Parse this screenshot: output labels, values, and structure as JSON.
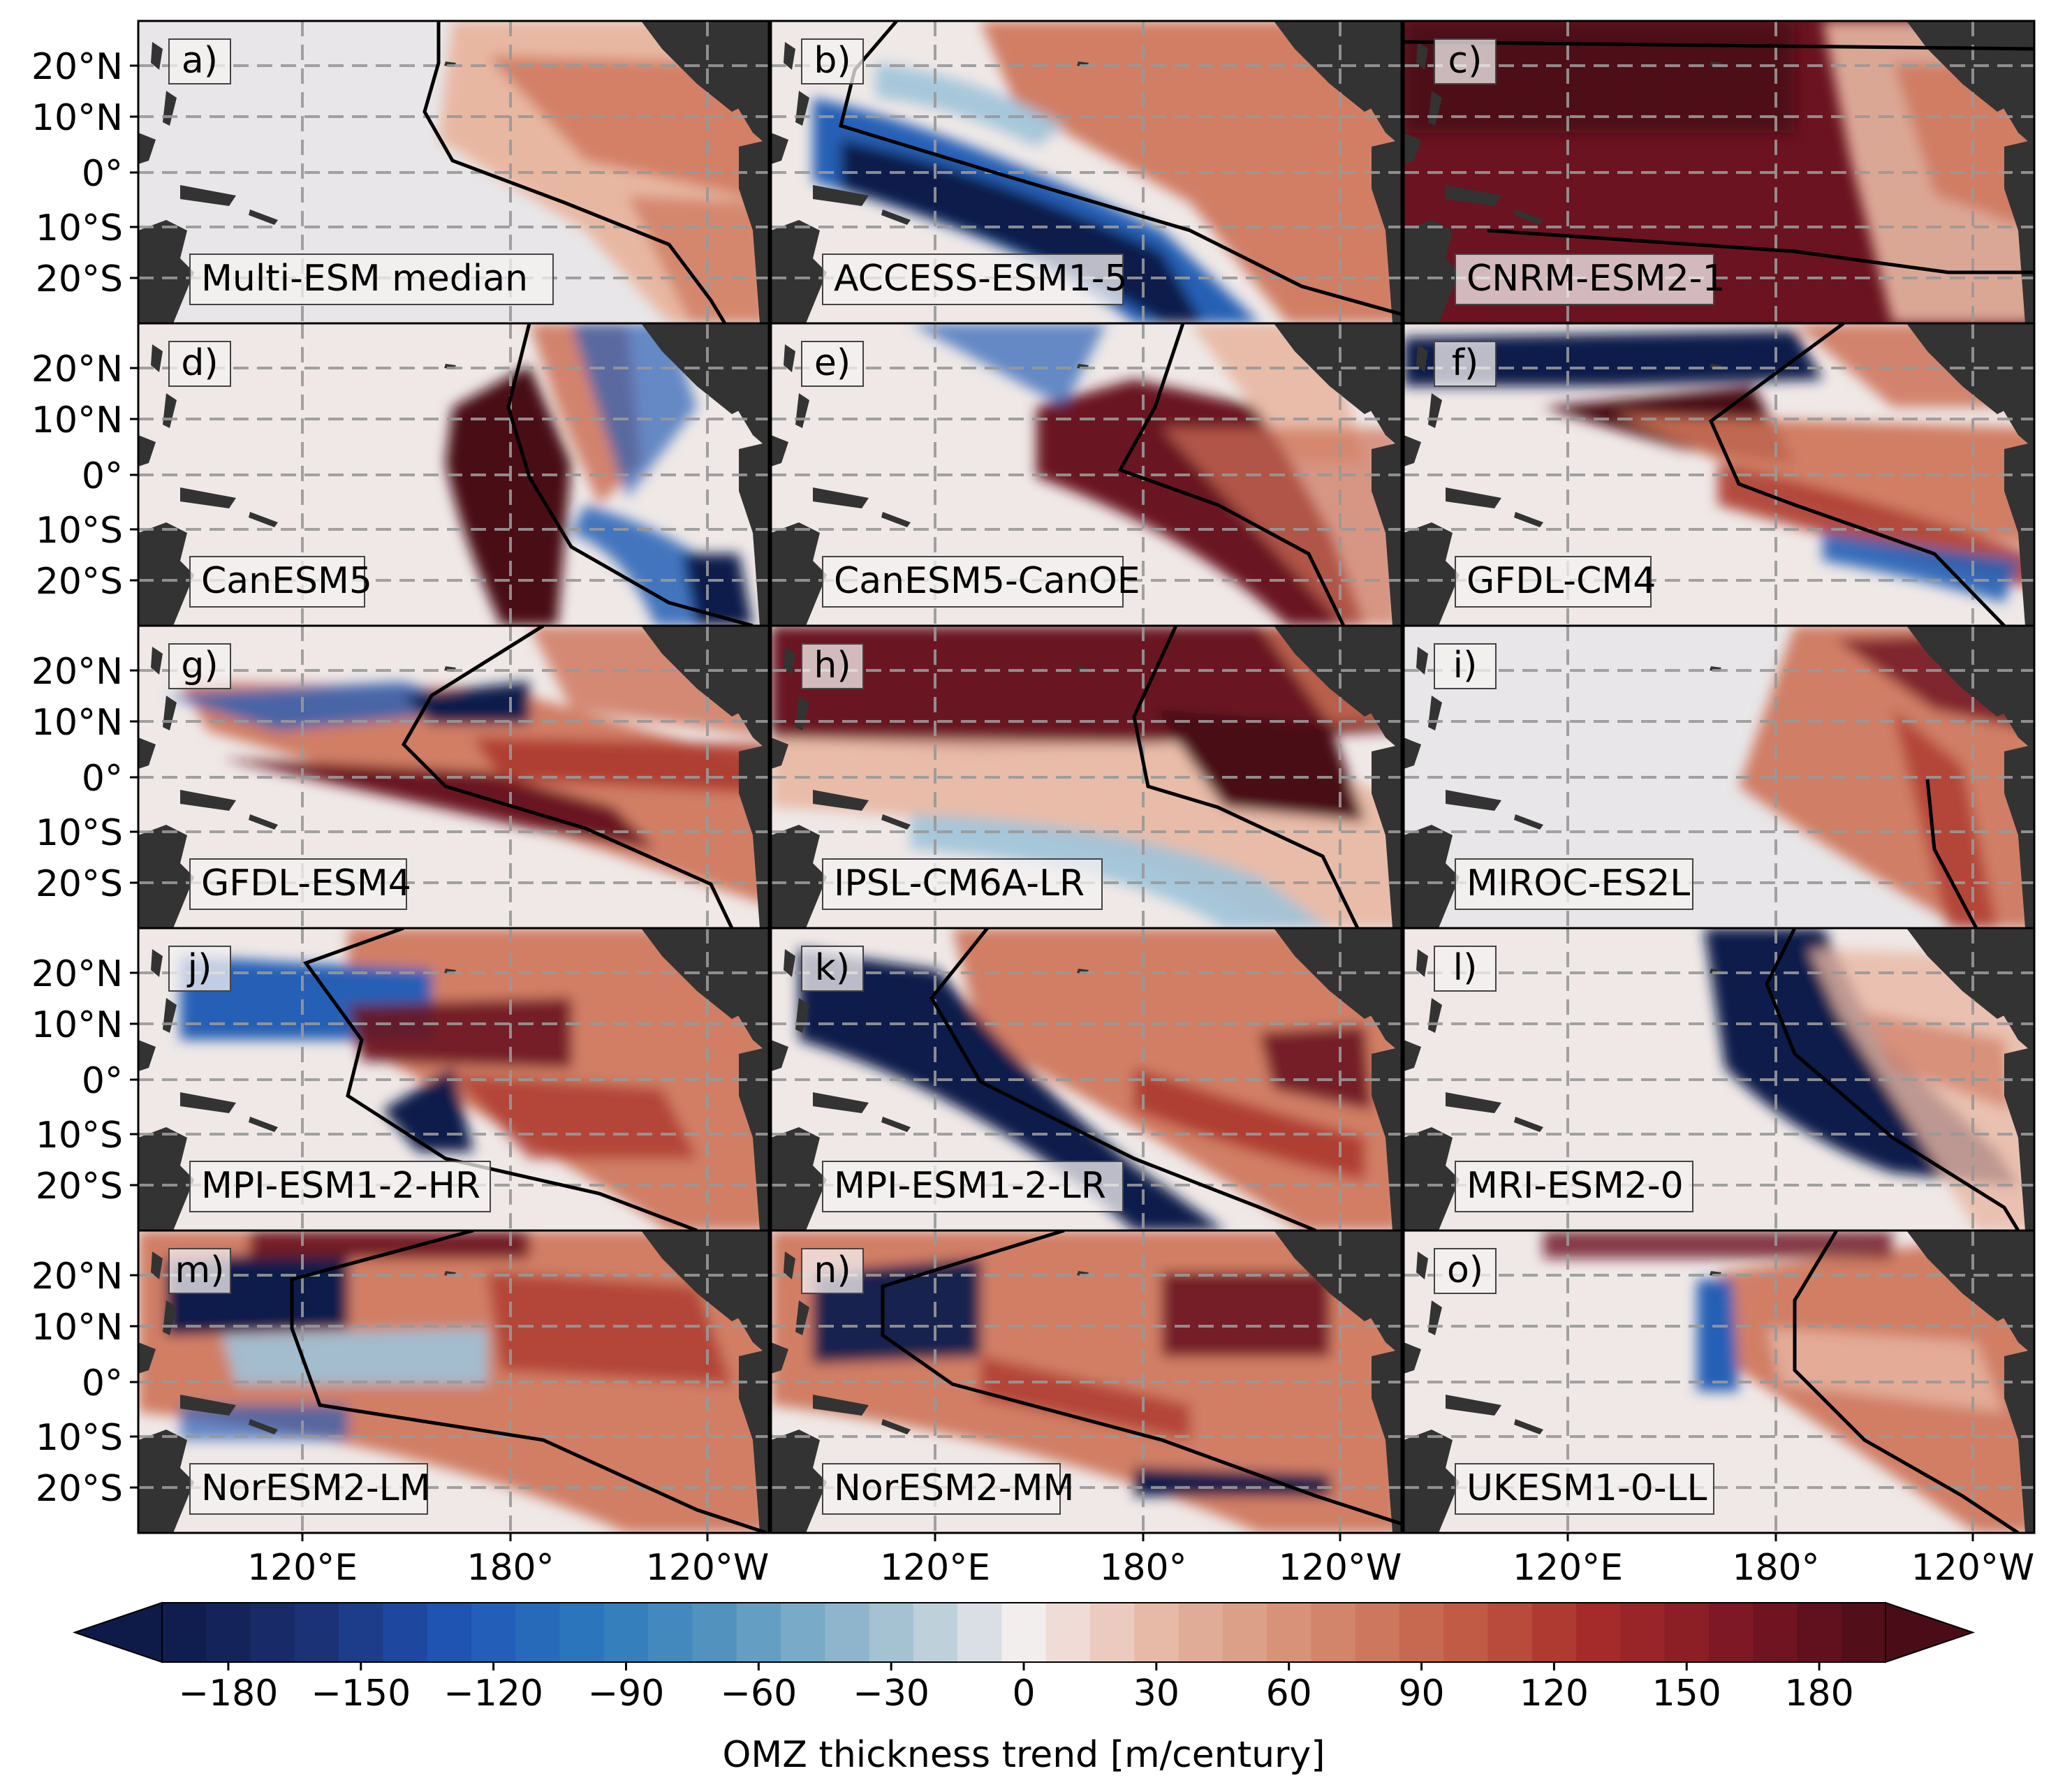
{
  "figure": {
    "lat_ticks": [
      "20°N",
      "10°N",
      "0°",
      "10°S",
      "20°S"
    ],
    "lon_ticks": [
      "120°E",
      "180°",
      "120°W"
    ],
    "colorbar": {
      "label": "OMZ thickness trend [m/century]",
      "ticks": [
        "−180",
        "−150",
        "−120",
        "−90",
        "−60",
        "−30",
        "0",
        "30",
        "60",
        "90",
        "120",
        "150",
        "180"
      ],
      "range": [
        -195,
        195
      ],
      "colormap": "diverging blue-white-red (RdBu_r style)",
      "colors": {
        "min": "#0e1b49",
        "zero": "#f3eeee",
        "max": "#4a0d17",
        "land": "#333333"
      },
      "extend": "both"
    }
  },
  "chart_data": [
    {
      "type": "heatmap",
      "panel_label": "a)",
      "model": "Multi-ESM median",
      "region": "tropical Pacific",
      "lon_range": [
        "120°E",
        "70°W"
      ],
      "lat_range": [
        "30°S",
        "30°N"
      ],
      "pattern": "mostly weak positive trend, moderate positive east of the black contour"
    },
    {
      "type": "heatmap",
      "panel_label": "b)",
      "model": "ACCESS-ESM1-5",
      "region": "tropical Pacific",
      "pattern": "strong negative band along the contour, moderate positive in the east"
    },
    {
      "type": "heatmap",
      "panel_label": "c)",
      "model": "CNRM-ESM2-1",
      "region": "tropical Pacific",
      "pattern": "strong positive over most of the basin"
    },
    {
      "type": "heatmap",
      "panel_label": "d)",
      "model": "CanESM5",
      "region": "tropical Pacific",
      "pattern": "positive near the dateline, negative patches in the southeast"
    },
    {
      "type": "heatmap",
      "panel_label": "e)",
      "model": "CanESM5-CanOE",
      "region": "tropical Pacific",
      "pattern": "strong positive tongue in the central Pacific"
    },
    {
      "type": "heatmap",
      "panel_label": "f)",
      "model": "GFDL-CM4",
      "region": "tropical Pacific",
      "pattern": "negative band in the north, positive bands along the equator"
    },
    {
      "type": "heatmap",
      "panel_label": "g)",
      "model": "GFDL-ESM4",
      "region": "tropical Pacific",
      "pattern": "positive bands with negative streaks in the north"
    },
    {
      "type": "heatmap",
      "panel_label": "h)",
      "model": "IPSL-CM6A-LR",
      "region": "tropical Pacific",
      "pattern": "strong positive in the north, weak negative in the south"
    },
    {
      "type": "heatmap",
      "panel_label": "i)",
      "model": "MIROC-ES2L",
      "region": "tropical Pacific",
      "pattern": "positive only near the eastern boundary"
    },
    {
      "type": "heatmap",
      "panel_label": "j)",
      "model": "MPI-ESM1-2-HR",
      "region": "tropical Pacific",
      "pattern": "negative in the west, positive in the east"
    },
    {
      "type": "heatmap",
      "panel_label": "k)",
      "model": "MPI-ESM1-2-LR",
      "region": "tropical Pacific",
      "pattern": "diagonal negative band, positive east of the contour"
    },
    {
      "type": "heatmap",
      "panel_label": "l)",
      "model": "MRI-ESM2-0",
      "region": "tropical Pacific",
      "pattern": "strong negative wedge in the east"
    },
    {
      "type": "heatmap",
      "panel_label": "m)",
      "model": "NorESM2-LM",
      "region": "tropical Pacific",
      "pattern": "negative patch in the northwest, positive elsewhere"
    },
    {
      "type": "heatmap",
      "panel_label": "n)",
      "model": "NorESM2-MM",
      "region": "tropical Pacific",
      "pattern": "negative bands in the west, positive in the east"
    },
    {
      "type": "heatmap",
      "panel_label": "o)",
      "model": "UKESM1-0-LL",
      "region": "tropical Pacific",
      "pattern": "weak positive, narrow negative patch near 160°W"
    }
  ]
}
